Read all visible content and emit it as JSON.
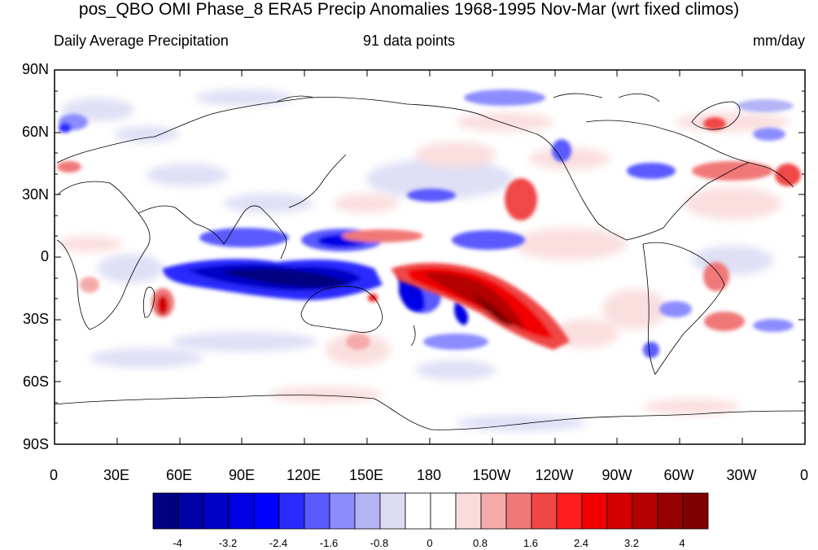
{
  "title": "pos_QBO OMI Phase_8 ERA5 Precip Anomalies 1968-1995 Nov-Mar (wrt fixed climos)",
  "subtitle_left": "Daily Average Precipitation",
  "subtitle_center": "91 data points",
  "subtitle_right": "mm/day",
  "lat_labels": [
    "90N",
    "60N",
    "30N",
    "0",
    "30S",
    "60S",
    "90S"
  ],
  "lon_labels": [
    "0",
    "30E",
    "60E",
    "90E",
    "120E",
    "150E",
    "180",
    "150W",
    "120W",
    "90W",
    "60W",
    "30W",
    "0"
  ],
  "colorbar": {
    "colors": [
      "#000080",
      "#0000a6",
      "#0000c8",
      "#0000e6",
      "#0000ff",
      "#2a2aff",
      "#5a5aff",
      "#8c8cff",
      "#b4b4f5",
      "#dcdcf5",
      "#ffffff",
      "#ffffff",
      "#fadcdc",
      "#f5aaaa",
      "#f07878",
      "#f04646",
      "#ff1e1e",
      "#f00000",
      "#d20000",
      "#b40000",
      "#960000",
      "#800000"
    ],
    "labels": [
      "-4",
      "-3.2",
      "-2.4",
      "-1.6",
      "-0.8",
      "0",
      "0.8",
      "1.6",
      "2.4",
      "3.2",
      "4"
    ]
  },
  "colors": {
    "positive": "#d20000",
    "negative": "#0000c8",
    "coast": "#000000"
  }
}
